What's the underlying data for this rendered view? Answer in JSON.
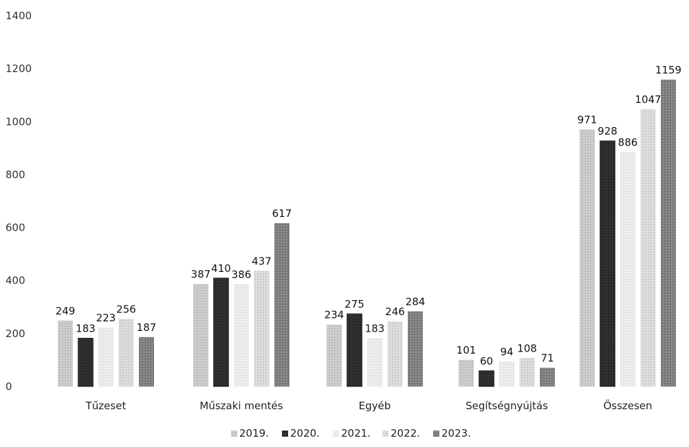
{
  "chart_data": {
    "type": "bar",
    "categories": [
      "Tűzeset",
      "Műszaki mentés",
      "Egyéb",
      "Segítségnyújtás",
      "Összesen"
    ],
    "series": [
      {
        "name": "2019.",
        "values": [
          249,
          387,
          234,
          101,
          971
        ]
      },
      {
        "name": "2020.",
        "values": [
          183,
          410,
          275,
          60,
          928
        ]
      },
      {
        "name": "2021.",
        "values": [
          223,
          386,
          183,
          94,
          886
        ]
      },
      {
        "name": "2022.",
        "values": [
          256,
          437,
          246,
          108,
          1047
        ]
      },
      {
        "name": "2023.",
        "values": [
          187,
          617,
          284,
          71,
          1159
        ]
      }
    ],
    "yticks": [
      "0",
      "200",
      "400",
      "600",
      "800",
      "1000",
      "1200",
      "1400"
    ],
    "ylim": [
      0,
      1400
    ],
    "grid": false,
    "legend_position": "bottom",
    "colors": {
      "2019.": "#c8c8c8",
      "2020.": "#2e2e2e",
      "2021.": "#ececec",
      "2022.": "#d9d9d9",
      "2023.": "#7a7a7a"
    }
  }
}
